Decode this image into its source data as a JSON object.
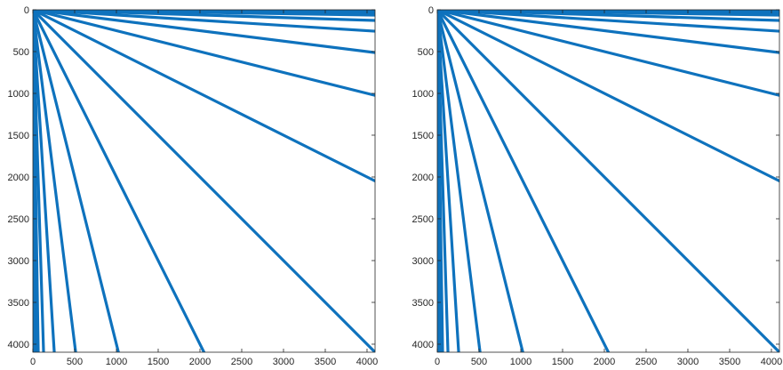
{
  "colors": {
    "series": "#0e72bd",
    "axis": "#262626",
    "background": "#ffffff"
  },
  "chart_data": [
    {
      "type": "line",
      "title": "",
      "xlabel": "",
      "ylabel": "",
      "xlim": [
        0,
        4096
      ],
      "ylim": [
        0,
        4096
      ],
      "y_reversed": true,
      "grid": false,
      "xticks": [
        0,
        500,
        1000,
        1500,
        2000,
        2500,
        3000,
        3500,
        4000
      ],
      "yticks": [
        0,
        500,
        1000,
        1500,
        2000,
        2500,
        3000,
        3500,
        4000
      ],
      "xtick_labels": [
        "0",
        "500",
        "1000",
        "1500",
        "2000",
        "2500",
        "3000",
        "3500",
        "4000"
      ],
      "ytick_labels": [
        "0",
        "500",
        "1000",
        "1500",
        "2000",
        "2500",
        "3000",
        "3500",
        "4000"
      ],
      "series": [
        {
          "values": [
            [
              0,
              0
            ],
            [
              4096,
              8
            ]
          ]
        },
        {
          "values": [
            [
              0,
              0
            ],
            [
              4096,
              16
            ]
          ]
        },
        {
          "values": [
            [
              0,
              0
            ],
            [
              4096,
              32
            ]
          ]
        },
        {
          "values": [
            [
              0,
              0
            ],
            [
              4096,
              64
            ]
          ]
        },
        {
          "values": [
            [
              0,
              0
            ],
            [
              4096,
              128
            ]
          ]
        },
        {
          "values": [
            [
              0,
              0
            ],
            [
              4096,
              256
            ]
          ]
        },
        {
          "values": [
            [
              0,
              0
            ],
            [
              4096,
              512
            ]
          ]
        },
        {
          "values": [
            [
              0,
              0
            ],
            [
              4096,
              1024
            ]
          ]
        },
        {
          "values": [
            [
              0,
              0
            ],
            [
              4096,
              2048
            ]
          ]
        },
        {
          "values": [
            [
              0,
              0
            ],
            [
              4096,
              4096
            ]
          ]
        },
        {
          "values": [
            [
              0,
              0
            ],
            [
              2048,
              4096
            ]
          ]
        },
        {
          "values": [
            [
              0,
              0
            ],
            [
              1024,
              4096
            ]
          ]
        },
        {
          "values": [
            [
              0,
              0
            ],
            [
              512,
              4096
            ]
          ]
        },
        {
          "values": [
            [
              0,
              0
            ],
            [
              256,
              4096
            ]
          ]
        },
        {
          "values": [
            [
              0,
              0
            ],
            [
              128,
              4096
            ]
          ]
        },
        {
          "values": [
            [
              0,
              0
            ],
            [
              64,
              4096
            ]
          ]
        },
        {
          "values": [
            [
              0,
              0
            ],
            [
              32,
              4096
            ]
          ]
        },
        {
          "values": [
            [
              0,
              0
            ],
            [
              16,
              4096
            ]
          ]
        },
        {
          "values": [
            [
              0,
              0
            ],
            [
              8,
              4096
            ]
          ]
        }
      ]
    },
    {
      "type": "line",
      "title": "",
      "xlabel": "",
      "ylabel": "",
      "xlim": [
        0,
        4096
      ],
      "ylim": [
        0,
        4096
      ],
      "y_reversed": true,
      "grid": false,
      "xticks": [
        0,
        500,
        1000,
        1500,
        2000,
        2500,
        3000,
        3500,
        4000
      ],
      "yticks": [
        0,
        500,
        1000,
        1500,
        2000,
        2500,
        3000,
        3500,
        4000
      ],
      "xtick_labels": [
        "0",
        "500",
        "1000",
        "1500",
        "2000",
        "2500",
        "3000",
        "3500",
        "4000"
      ],
      "ytick_labels": [
        "0",
        "500",
        "1000",
        "1500",
        "2000",
        "2500",
        "3000",
        "3500",
        "4000"
      ],
      "series": [
        {
          "values": [
            [
              0,
              0
            ],
            [
              4096,
              8
            ]
          ]
        },
        {
          "values": [
            [
              0,
              0
            ],
            [
              4096,
              16
            ]
          ]
        },
        {
          "values": [
            [
              0,
              0
            ],
            [
              4096,
              32
            ]
          ]
        },
        {
          "values": [
            [
              0,
              0
            ],
            [
              4096,
              64
            ]
          ]
        },
        {
          "values": [
            [
              0,
              0
            ],
            [
              4096,
              128
            ]
          ]
        },
        {
          "values": [
            [
              0,
              0
            ],
            [
              4096,
              256
            ]
          ]
        },
        {
          "values": [
            [
              0,
              0
            ],
            [
              4096,
              512
            ]
          ]
        },
        {
          "values": [
            [
              0,
              0
            ],
            [
              4096,
              1024
            ]
          ]
        },
        {
          "values": [
            [
              0,
              0
            ],
            [
              4096,
              2048
            ]
          ]
        },
        {
          "values": [
            [
              0,
              0
            ],
            [
              4096,
              4096
            ]
          ]
        },
        {
          "values": [
            [
              0,
              0
            ],
            [
              2048,
              4096
            ]
          ]
        },
        {
          "values": [
            [
              0,
              0
            ],
            [
              1024,
              4096
            ]
          ]
        },
        {
          "values": [
            [
              0,
              0
            ],
            [
              512,
              4096
            ]
          ]
        },
        {
          "values": [
            [
              0,
              0
            ],
            [
              256,
              4096
            ]
          ]
        },
        {
          "values": [
            [
              0,
              0
            ],
            [
              128,
              4096
            ]
          ]
        },
        {
          "values": [
            [
              0,
              0
            ],
            [
              64,
              4096
            ]
          ]
        },
        {
          "values": [
            [
              0,
              0
            ],
            [
              32,
              4096
            ]
          ]
        },
        {
          "values": [
            [
              0,
              0
            ],
            [
              16,
              4096
            ]
          ]
        },
        {
          "values": [
            [
              0,
              0
            ],
            [
              8,
              4096
            ]
          ]
        }
      ]
    }
  ]
}
